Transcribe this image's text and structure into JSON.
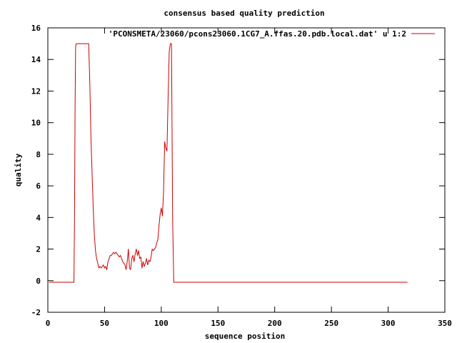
{
  "chart_data": {
    "type": "line",
    "title": "consensus based quality prediction",
    "xlabel": "sequence position",
    "ylabel": "quality",
    "xlim": [
      0,
      350
    ],
    "ylim": [
      -2,
      16
    ],
    "xticks": [
      0,
      50,
      100,
      150,
      200,
      250,
      300,
      350
    ],
    "yticks": [
      -2,
      0,
      2,
      4,
      6,
      8,
      10,
      12,
      14,
      16
    ],
    "grid": false,
    "legend_position": "top-right",
    "series": [
      {
        "name": "'PCONSMETA/23060/pcons23060.1CG7_A.ffas.20.pdb.local.dat' u 1:2",
        "color": "#cc0000",
        "x": [
          1,
          23,
          23.5,
          24,
          24.5,
          25,
          26,
          30,
          36,
          37,
          38,
          39,
          40,
          41,
          42,
          43,
          44,
          45,
          46,
          47,
          48,
          49,
          50,
          51,
          52,
          53,
          54,
          55,
          56,
          57,
          58,
          59,
          60,
          61,
          62,
          63,
          64,
          65,
          66,
          67,
          68,
          69,
          70,
          71,
          72,
          73,
          74,
          75,
          76,
          77,
          78,
          79,
          80,
          81,
          82,
          83,
          84,
          85,
          86,
          87,
          88,
          89,
          90,
          91,
          92,
          93,
          94,
          95,
          96,
          97,
          98,
          99,
          100,
          101,
          102,
          103,
          104,
          105,
          106,
          107,
          108,
          109,
          110,
          111,
          112,
          317
        ],
        "y": [
          -0.1,
          -0.1,
          3.8,
          11,
          14.8,
          15,
          15,
          15,
          15,
          12.5,
          9,
          6.8,
          4.6,
          2.9,
          1.9,
          1.4,
          1.1,
          0.8,
          0.9,
          0.8,
          0.9,
          1.0,
          0.8,
          0.9,
          0.7,
          1.2,
          1.4,
          1.6,
          1.6,
          1.7,
          1.8,
          1.7,
          1.8,
          1.7,
          1.6,
          1.5,
          1.6,
          1.4,
          1.2,
          1.1,
          1.0,
          0.7,
          1.2,
          2.0,
          0.8,
          0.7,
          1.4,
          1.6,
          1.2,
          1.7,
          2.0,
          1.6,
          1.9,
          1.4,
          1.5,
          0.8,
          1.2,
          0.9,
          1.1,
          1.4,
          1.0,
          1.3,
          1.2,
          1.5,
          2.0,
          1.9,
          2.0,
          2.1,
          2.4,
          2.6,
          3.5,
          4.2,
          4.6,
          4.1,
          5.6,
          8.8,
          8.4,
          8.2,
          11.5,
          14.5,
          15.0,
          15.0,
          4.0,
          -0.1,
          -0.1,
          -0.1
        ]
      }
    ]
  }
}
